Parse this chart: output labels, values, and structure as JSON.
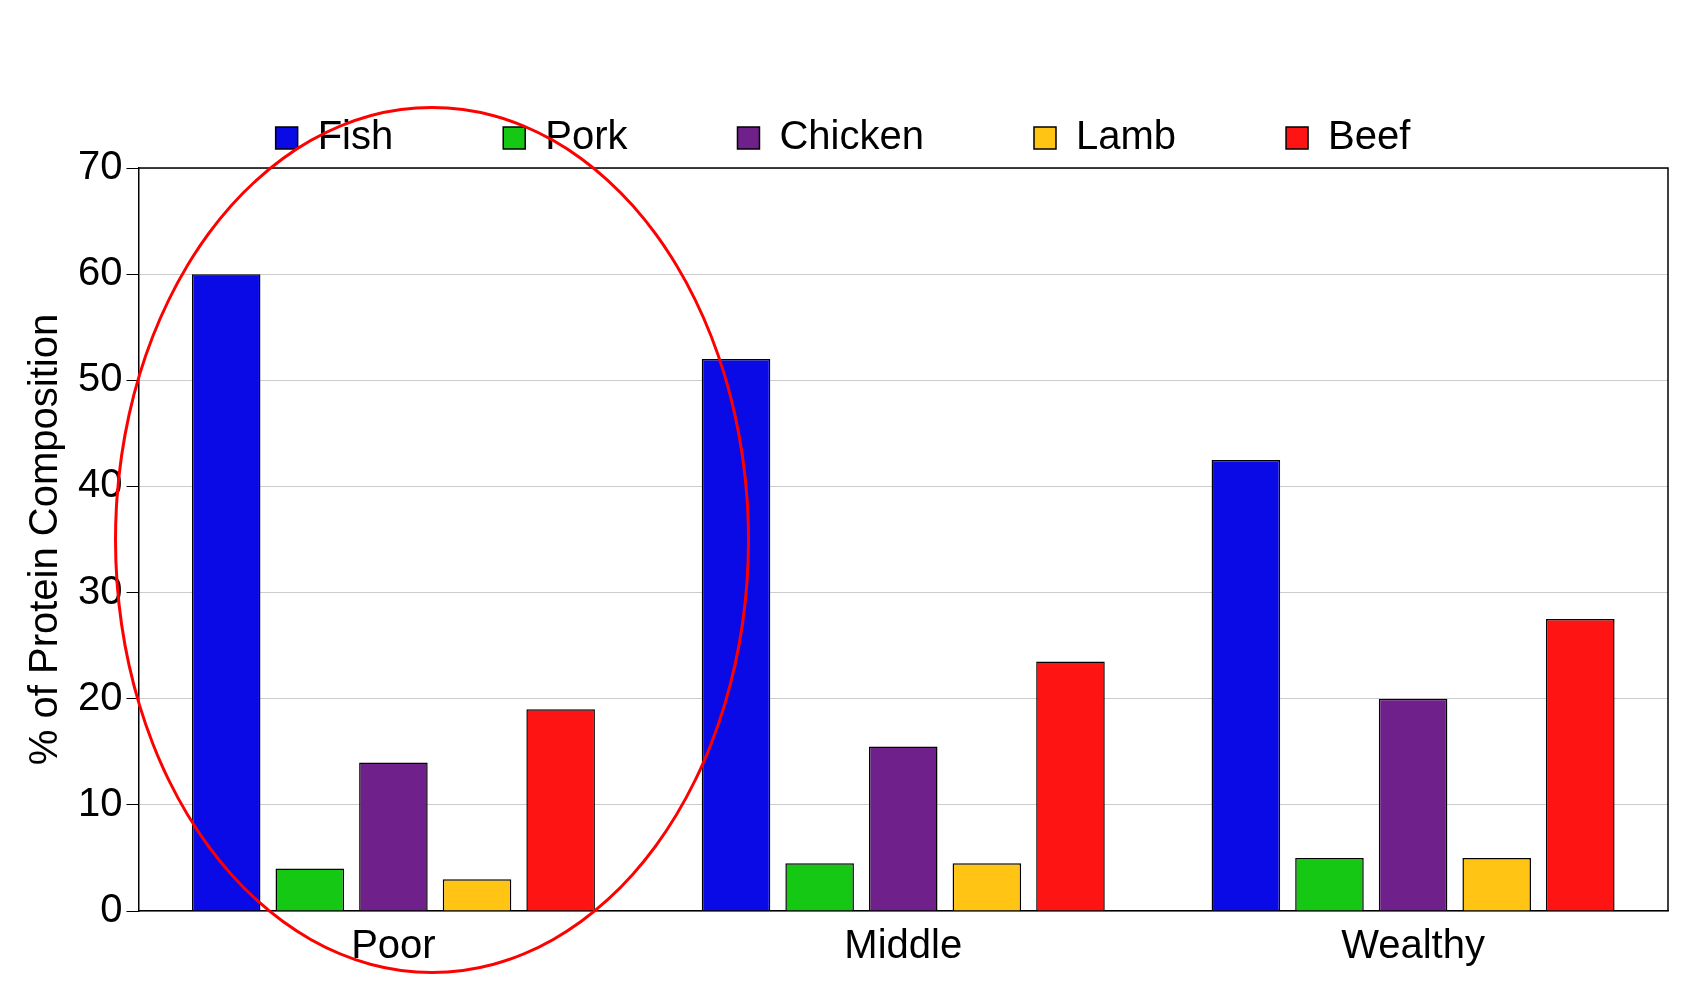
{
  "chart_data": {
    "type": "bar",
    "ylabel": "% of Protein Composition",
    "categories": [
      "Poor",
      "Middle",
      "Wealthy"
    ],
    "series": [
      {
        "name": "Fish",
        "color": "#0a0ae6",
        "values": [
          60,
          52,
          42.5
        ]
      },
      {
        "name": "Pork",
        "color": "#14c814",
        "values": [
          4,
          4.5,
          5
        ]
      },
      {
        "name": "Chicken",
        "color": "#70208a",
        "values": [
          14,
          15.5,
          20
        ]
      },
      {
        "name": "Lamb",
        "color": "#ffc414",
        "values": [
          3,
          4.5,
          5
        ]
      },
      {
        "name": "Beef",
        "color": "#ff1414",
        "values": [
          19,
          23.5,
          27.5
        ]
      }
    ],
    "ylim": [
      0,
      70
    ],
    "yticks": [
      0,
      10,
      20,
      30,
      40,
      50,
      60,
      70
    ],
    "grid": "y",
    "legend": "top"
  }
}
